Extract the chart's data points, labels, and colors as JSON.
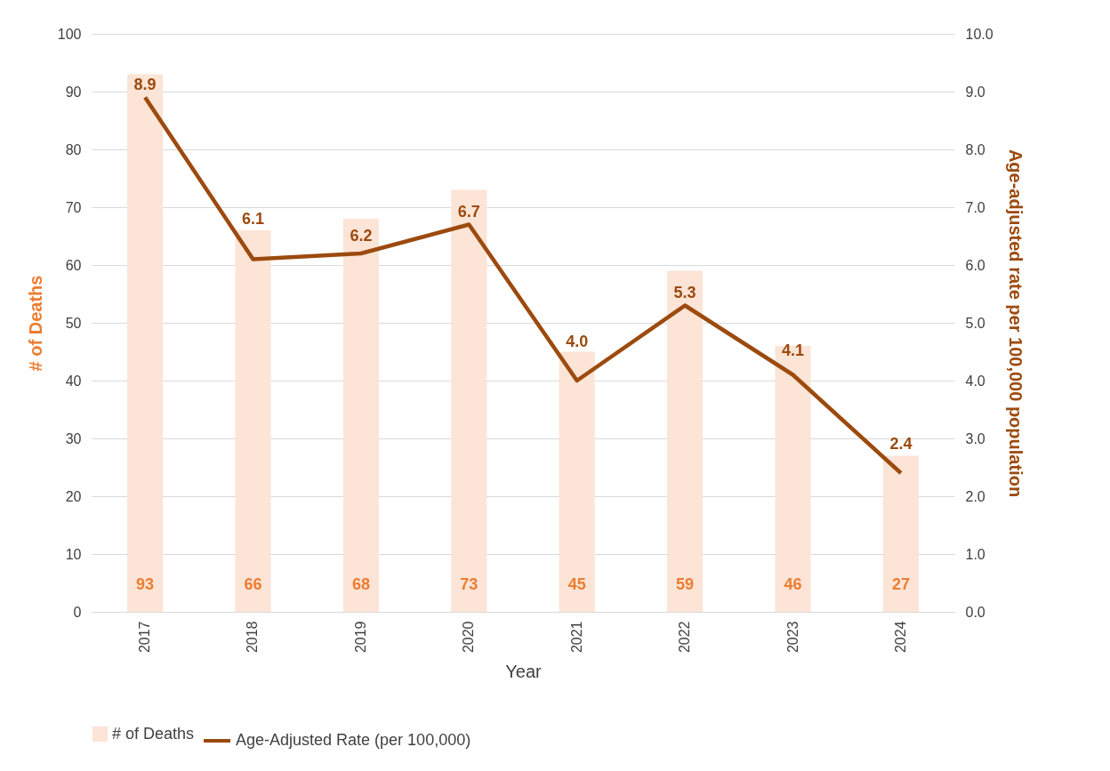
{
  "chart_data": {
    "type": "bar",
    "xlabel": "Year",
    "ylabel": "# of Deaths",
    "y2label": "Age-adjusted rate per 100,000 population",
    "categories": [
      "2017",
      "2018",
      "2019",
      "2020",
      "2021",
      "2022",
      "2023",
      "2024"
    ],
    "series": [
      {
        "name": "# of Deaths",
        "color": "#fce4d6",
        "values": [
          93,
          66,
          68,
          73,
          45,
          59,
          46,
          27
        ],
        "value_labels": [
          "93",
          "66",
          "68",
          "73",
          "45",
          "59",
          "46",
          "27"
        ]
      },
      {
        "name": "Age-Adjusted Rate (per 100,000)",
        "type": "line",
        "axis": "y2",
        "color": "#9c4a0e",
        "values": [
          8.9,
          6.1,
          6.2,
          6.7,
          4.0,
          5.3,
          4.1,
          2.4
        ],
        "value_labels": [
          "8.9",
          "6.1",
          "6.2",
          "6.7",
          "4.0",
          "5.3",
          "4.1",
          "2.4"
        ]
      }
    ],
    "ylim": [
      0,
      100
    ],
    "yticks": [
      0,
      10,
      20,
      30,
      40,
      50,
      60,
      70,
      80,
      90,
      100
    ],
    "y2lim": [
      0,
      10
    ],
    "y2ticks": [
      {
        "value": 0,
        "label": "0.0"
      },
      {
        "value": 1,
        "label": "1.0"
      },
      {
        "value": 2,
        "label": "2.0"
      },
      {
        "value": 3,
        "label": "3.0"
      },
      {
        "value": 4,
        "label": "4.0"
      },
      {
        "value": 5,
        "label": "5.0"
      },
      {
        "value": 6,
        "label": "6.0"
      },
      {
        "value": 7,
        "label": "7.0"
      },
      {
        "value": 8,
        "label": "8.0"
      },
      {
        "value": 9,
        "label": "9.0"
      },
      {
        "value": 10,
        "label": "10.0"
      }
    ],
    "grid": "y",
    "legend": "bottom",
    "line_style": "solid",
    "marker": "none"
  }
}
